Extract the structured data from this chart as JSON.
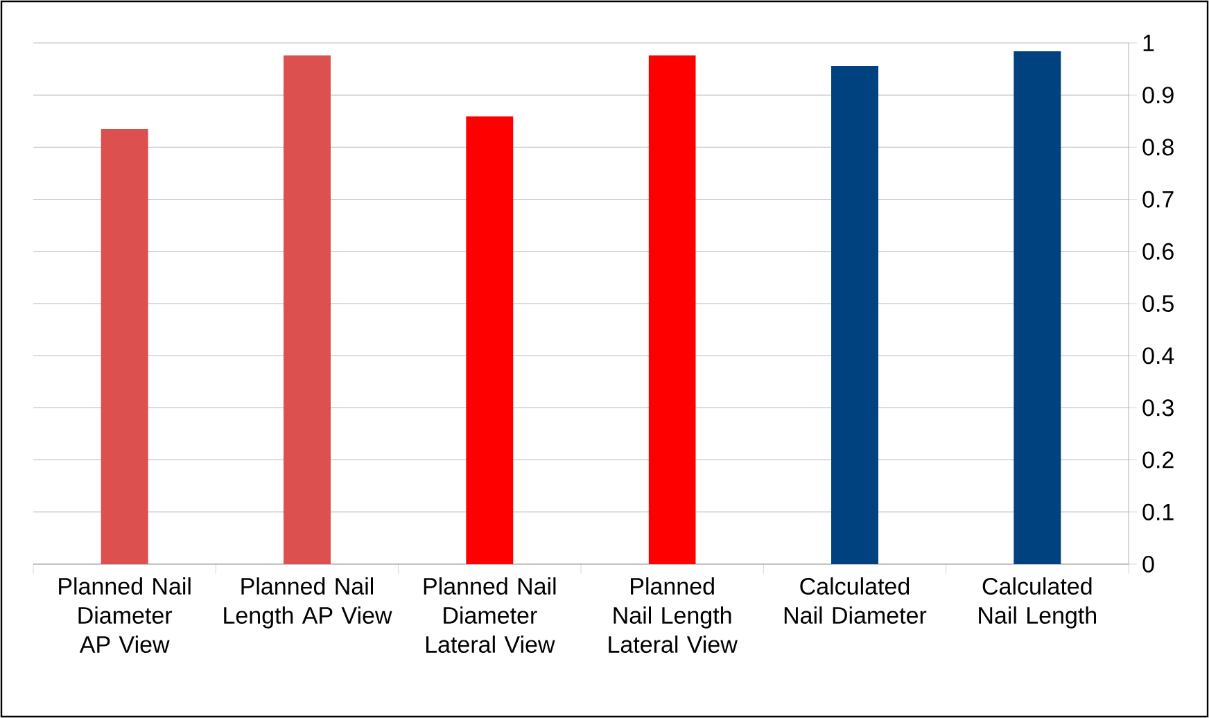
{
  "chart_data": {
    "type": "bar",
    "categories": [
      "Planned Nail Diameter AP View",
      "Planned Nail Length AP View",
      "Planned Nail Diameter Lateral View",
      "Planned Nail Length Lateral View",
      "Calculated Nail Diameter",
      "Calculated Nail Length"
    ],
    "values": [
      0.835,
      0.976,
      0.859,
      0.976,
      0.956,
      0.984
    ],
    "colors": [
      "#dc5050",
      "#dc5050",
      "#ff0000",
      "#ff0000",
      "#00427f",
      "#00427f"
    ],
    "ylim": [
      0,
      1
    ],
    "yticks": [
      0,
      0.1,
      0.2,
      0.3,
      0.4,
      0.5,
      0.6,
      0.7,
      0.8,
      0.9,
      1
    ],
    "grid": "y"
  }
}
